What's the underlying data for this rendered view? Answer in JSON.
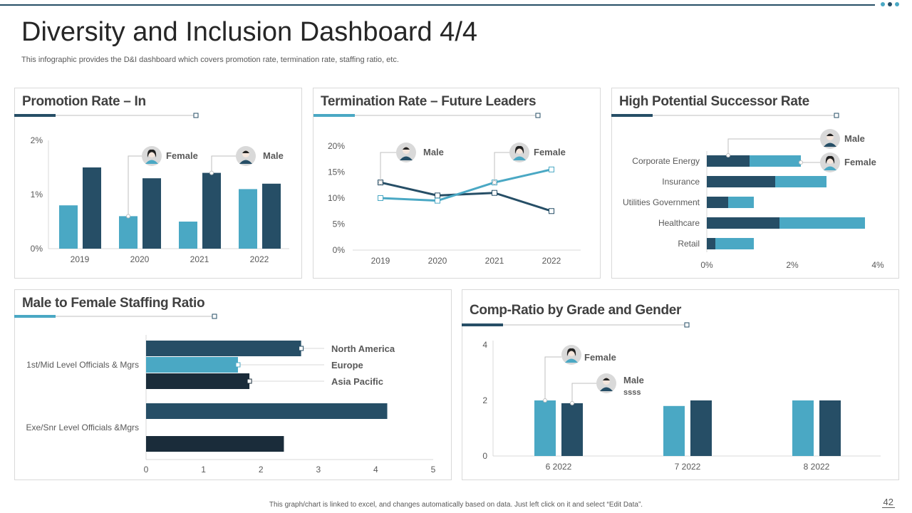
{
  "header": {
    "title": "Diversity and Inclusion Dashboard 4/4",
    "subtitle": "This infographic provides the D&I dashboard which covers promotion rate, termination rate, staffing ratio, etc."
  },
  "footer": {
    "note": "This graph/chart is linked to excel, and changes automatically based on data. Just left click on it and select “Edit Data”.",
    "page": "42"
  },
  "colors": {
    "light": "#4aa8c4",
    "dark": "#264e66",
    "darkest": "#1a2c3a"
  },
  "chart_data": [
    {
      "id": "promo",
      "type": "bar",
      "title": "Promotion Rate – In",
      "categories": [
        "2019",
        "2020",
        "2021",
        "2022"
      ],
      "series": [
        {
          "name": "Female",
          "values": [
            0.8,
            0.6,
            0.5,
            1.1
          ]
        },
        {
          "name": "Male",
          "values": [
            1.5,
            1.3,
            1.4,
            1.2
          ]
        }
      ],
      "yticks": [
        "0%",
        "1%",
        "2%"
      ],
      "ylim": [
        0,
        2
      ],
      "yunit": "%"
    },
    {
      "id": "term",
      "type": "line",
      "title": "Termination Rate – Future Leaders",
      "categories": [
        "2019",
        "2020",
        "2021",
        "2022"
      ],
      "series": [
        {
          "name": "Male",
          "values": [
            13,
            10.5,
            11,
            7.5
          ]
        },
        {
          "name": "Female",
          "values": [
            10,
            9.5,
            13,
            15.5
          ]
        }
      ],
      "yticks": [
        "0%",
        "5%",
        "10%",
        "15%",
        "20%"
      ],
      "ylim": [
        0,
        20
      ]
    },
    {
      "id": "hpsr",
      "type": "bar",
      "orientation": "horizontal-stacked",
      "title": "High Potential Successor Rate",
      "categories": [
        "Corporate Energy",
        "Insurance",
        "Utilities Government",
        "Healthcare",
        "Retail"
      ],
      "series": [
        {
          "name": "Male",
          "values": [
            1.0,
            1.6,
            0.5,
            1.7,
            0.2
          ]
        },
        {
          "name": "Female",
          "values": [
            1.2,
            1.2,
            0.6,
            2.0,
            0.9
          ]
        }
      ],
      "xticks": [
        "0%",
        "2%",
        "4%"
      ],
      "xlim": [
        0,
        4
      ]
    },
    {
      "id": "staff",
      "type": "bar",
      "orientation": "horizontal",
      "title": "Male to Female Staffing Ratio",
      "categories": [
        "1st/Mid Level Officials & Mgrs",
        "Exe/Snr Level Officials &Mgrs"
      ],
      "series": [
        {
          "name": "North America",
          "values": [
            2.7,
            4.2
          ]
        },
        {
          "name": "Europe",
          "values": [
            1.6,
            0
          ]
        },
        {
          "name": "Asia Pacific",
          "values": [
            1.8,
            2.4
          ]
        }
      ],
      "xticks": [
        "0",
        "1",
        "2",
        "3",
        "4",
        "5"
      ],
      "xlim": [
        0,
        5
      ]
    },
    {
      "id": "comp",
      "type": "bar",
      "title": "Comp-Ratio by Grade and Gender",
      "categories": [
        "6 2022",
        "7 2022",
        "8 2022"
      ],
      "series": [
        {
          "name": "Female",
          "values": [
            2.0,
            1.8,
            2.0
          ]
        },
        {
          "name": "Male",
          "values": [
            1.9,
            2.0,
            2.0
          ]
        }
      ],
      "yticks": [
        "0",
        "2",
        "4"
      ],
      "ylim": [
        0,
        4
      ],
      "annotation": "ssss"
    }
  ]
}
